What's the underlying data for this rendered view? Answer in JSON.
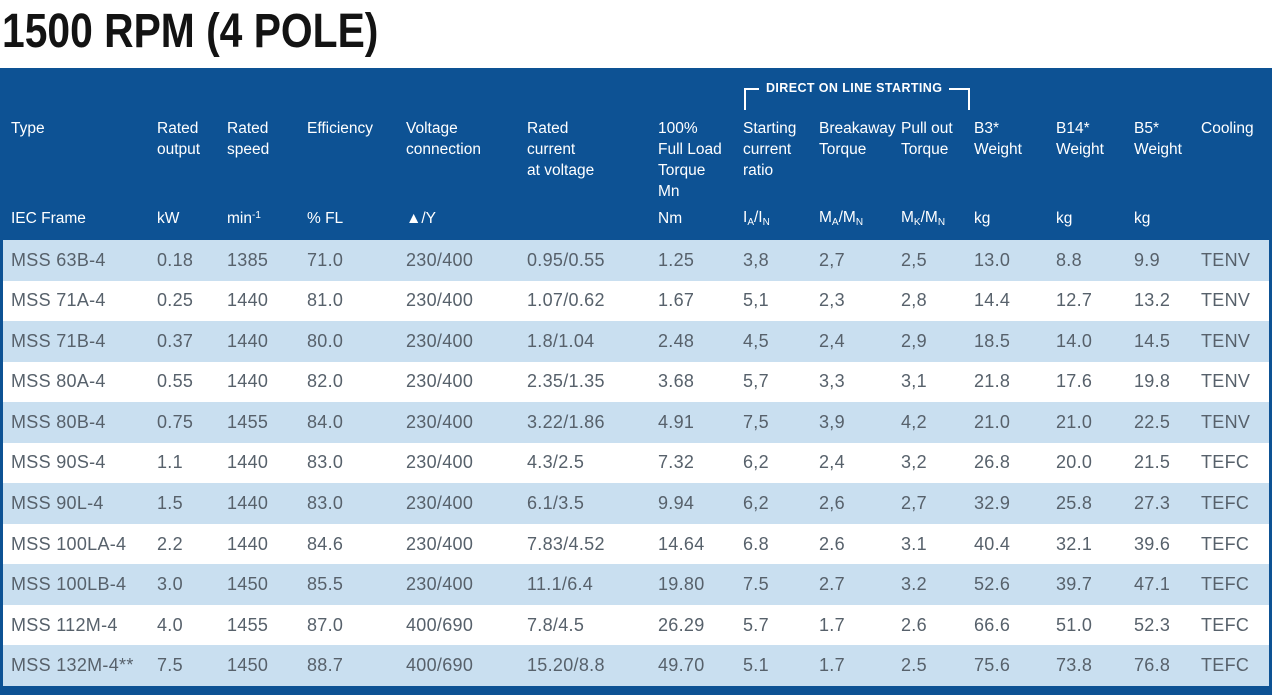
{
  "page": {
    "title": "1500 RPM (4 POLE)"
  },
  "colors": {
    "header_bg": "#0d5294",
    "row_stripe_bg": "#c9dff0",
    "row_bg": "#ffffff",
    "header_text": "#ffffff",
    "data_text": "#57616b",
    "title_text": "#131313"
  },
  "table": {
    "dol": {
      "label": "DIRECT ON LINE STARTING"
    },
    "columns": [
      {
        "id": "type",
        "title_lines": [
          "Type"
        ],
        "unit": "IEC Frame"
      },
      {
        "id": "rated-output",
        "title_lines": [
          "Rated",
          "output"
        ],
        "unit": "kW"
      },
      {
        "id": "rated-speed",
        "title_lines": [
          "Rated",
          "speed"
        ],
        "unit": "min^-1^"
      },
      {
        "id": "efficiency",
        "title_lines": [
          "Efficiency"
        ],
        "unit": "% FL"
      },
      {
        "id": "voltage-connection",
        "title_lines": [
          "Voltage",
          "connection"
        ],
        "unit": "▲/Y"
      },
      {
        "id": "rated-current",
        "title_lines": [
          "Rated",
          "current",
          "at voltage"
        ],
        "unit": ""
      },
      {
        "id": "full-load-torque",
        "title_lines": [
          "100%",
          "Full Load",
          "Torque",
          "Mn"
        ],
        "unit": "Nm"
      },
      {
        "id": "starting-current-ratio",
        "title_lines": [
          "Starting",
          "current",
          "ratio"
        ],
        "unit": "I~A~/I~N~"
      },
      {
        "id": "breakaway-torque",
        "title_lines": [
          "Breakaway",
          "Torque"
        ],
        "unit": "M~A~/M~N~"
      },
      {
        "id": "pull-out-torque",
        "title_lines": [
          "Pull out",
          "Torque"
        ],
        "unit": "M~K~/M~N~"
      },
      {
        "id": "b3-weight",
        "title_lines": [
          "B3*",
          "Weight"
        ],
        "unit": "kg"
      },
      {
        "id": "b14-weight",
        "title_lines": [
          "B14*",
          "Weight"
        ],
        "unit": "kg"
      },
      {
        "id": "b5-weight",
        "title_lines": [
          "B5*",
          "Weight"
        ],
        "unit": "kg"
      },
      {
        "id": "cooling",
        "title_lines": [
          "Cooling"
        ],
        "unit": ""
      }
    ],
    "rows": [
      [
        "MSS 63B-4",
        "0.18",
        "1385",
        "71.0",
        "230/400",
        "0.95/0.55",
        "1.25",
        "3,8",
        "2,7",
        "2,5",
        "13.0",
        "8.8",
        "9.9",
        "TENV"
      ],
      [
        "MSS 71A-4",
        "0.25",
        "1440",
        "81.0",
        "230/400",
        "1.07/0.62",
        "1.67",
        "5,1",
        "2,3",
        "2,8",
        "14.4",
        "12.7",
        "13.2",
        "TENV"
      ],
      [
        "MSS 71B-4",
        "0.37",
        "1440",
        "80.0",
        "230/400",
        "1.8/1.04",
        "2.48",
        "4,5",
        "2,4",
        "2,9",
        "18.5",
        "14.0",
        "14.5",
        "TENV"
      ],
      [
        "MSS 80A-4",
        "0.55",
        "1440",
        "82.0",
        "230/400",
        "2.35/1.35",
        "3.68",
        "5,7",
        "3,3",
        "3,1",
        "21.8",
        "17.6",
        "19.8",
        "TENV"
      ],
      [
        "MSS 80B-4",
        "0.75",
        "1455",
        "84.0",
        "230/400",
        "3.22/1.86",
        "4.91",
        "7,5",
        "3,9",
        "4,2",
        "21.0",
        "21.0",
        "22.5",
        "TENV"
      ],
      [
        "MSS 90S-4",
        "1.1",
        "1440",
        "83.0",
        "230/400",
        "4.3/2.5",
        "7.32",
        "6,2",
        "2,4",
        "3,2",
        "26.8",
        "20.0",
        "21.5",
        "TEFC"
      ],
      [
        "MSS 90L-4",
        "1.5",
        "1440",
        "83.0",
        "230/400",
        "6.1/3.5",
        "9.94",
        "6,2",
        "2,6",
        "2,7",
        "32.9",
        "25.8",
        "27.3",
        "TEFC"
      ],
      [
        "MSS 100LA-4",
        "2.2",
        "1440",
        "84.6",
        "230/400",
        "7.83/4.52",
        "14.64",
        "6.8",
        "2.6",
        "3.1",
        "40.4",
        "32.1",
        "39.6",
        "TEFC"
      ],
      [
        "MSS 100LB-4",
        "3.0",
        "1450",
        "85.5",
        "230/400",
        "11.1/6.4",
        "19.80",
        "7.5",
        "2.7",
        "3.2",
        "52.6",
        "39.7",
        "47.1",
        "TEFC"
      ],
      [
        "MSS 112M-4",
        "4.0",
        "1455",
        "87.0",
        "400/690",
        "7.8/4.5",
        "26.29",
        "5.7",
        "1.7",
        "2.6",
        "66.6",
        "51.0",
        "52.3",
        "TEFC"
      ],
      [
        "MSS 132M-4**",
        "7.5",
        "1450",
        "88.7",
        "400/690",
        "15.20/8.8",
        "49.70",
        "5.1",
        "1.7",
        "2.5",
        "75.6",
        "73.8",
        "76.8",
        "TEFC"
      ]
    ]
  }
}
